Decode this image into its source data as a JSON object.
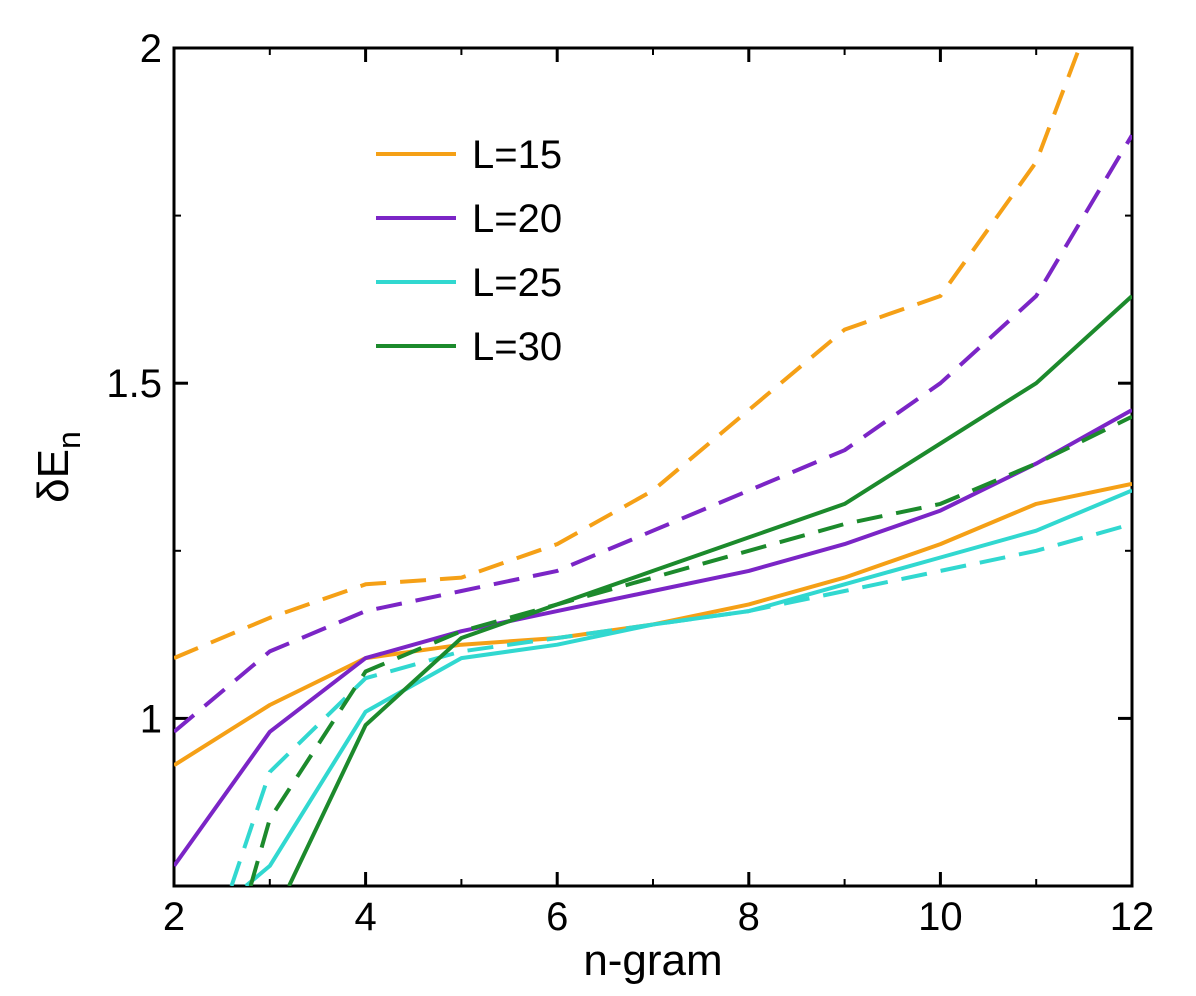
{
  "chart_data": {
    "type": "line",
    "xlabel": "n-gram",
    "ylabel_main": "δE",
    "ylabel_sub": "n",
    "xlim": [
      2,
      12
    ],
    "ylim": [
      0.75,
      2
    ],
    "x_ticks": [
      2,
      4,
      6,
      8,
      10,
      12
    ],
    "x_tick_labels": [
      "2",
      "4",
      "6",
      "8",
      "10",
      "12"
    ],
    "y_ticks": [
      1,
      1.5,
      2
    ],
    "y_tick_labels": [
      "1",
      "1.5",
      "2"
    ],
    "grid": false,
    "legend_position": "top-left",
    "legend": [
      {
        "label": "L=15",
        "color": "#f5a016"
      },
      {
        "label": "L=20",
        "color": "#7b25c6"
      },
      {
        "label": "L=25",
        "color": "#31d8d0"
      },
      {
        "label": "L=30",
        "color": "#1c8a2c"
      }
    ],
    "series": [
      {
        "name": "L=15 solid",
        "color": "#f5a016",
        "style": "solid",
        "x": [
          2,
          3,
          4,
          5,
          6,
          7,
          8,
          9,
          10,
          11,
          12
        ],
        "y": [
          0.93,
          1.02,
          1.09,
          1.11,
          1.12,
          1.14,
          1.17,
          1.21,
          1.26,
          1.32,
          1.35
        ]
      },
      {
        "name": "L=15 dashed",
        "color": "#f5a016",
        "style": "dashed",
        "x": [
          2,
          3,
          4,
          5,
          6,
          7,
          8,
          9,
          10,
          11,
          11.45
        ],
        "y": [
          1.09,
          1.15,
          1.2,
          1.21,
          1.26,
          1.34,
          1.46,
          1.58,
          1.63,
          1.83,
          2.0
        ]
      },
      {
        "name": "L=20 solid",
        "color": "#7b25c6",
        "style": "solid",
        "x": [
          2,
          3,
          4,
          5,
          6,
          7,
          8,
          9,
          10,
          11,
          12
        ],
        "y": [
          0.78,
          0.98,
          1.09,
          1.13,
          1.16,
          1.19,
          1.22,
          1.26,
          1.31,
          1.38,
          1.46
        ]
      },
      {
        "name": "L=20 dashed",
        "color": "#7b25c6",
        "style": "dashed",
        "x": [
          2,
          3,
          4,
          5,
          6,
          7,
          8,
          9,
          10,
          11,
          12
        ],
        "y": [
          0.98,
          1.1,
          1.16,
          1.19,
          1.22,
          1.28,
          1.34,
          1.4,
          1.5,
          1.63,
          1.87
        ]
      },
      {
        "name": "L=25 solid",
        "color": "#31d8d0",
        "style": "solid",
        "x": [
          2.75,
          3,
          4,
          5,
          6,
          7,
          8,
          9,
          10,
          11,
          12
        ],
        "y": [
          0.75,
          0.78,
          1.01,
          1.09,
          1.11,
          1.14,
          1.16,
          1.2,
          1.24,
          1.28,
          1.34
        ]
      },
      {
        "name": "L=25 dashed",
        "color": "#31d8d0",
        "style": "dashed",
        "x": [
          2.6,
          3,
          4,
          5,
          6,
          7,
          8,
          9,
          10,
          11,
          12
        ],
        "y": [
          0.75,
          0.92,
          1.06,
          1.1,
          1.12,
          1.14,
          1.16,
          1.19,
          1.22,
          1.25,
          1.29
        ]
      },
      {
        "name": "L=30 solid",
        "color": "#1c8a2c",
        "style": "solid",
        "x": [
          3.2,
          4,
          5,
          6,
          7,
          8,
          9,
          10,
          11,
          12
        ],
        "y": [
          0.75,
          0.99,
          1.12,
          1.17,
          1.22,
          1.27,
          1.32,
          1.41,
          1.5,
          1.63
        ]
      },
      {
        "name": "L=30 dashed",
        "color": "#1c8a2c",
        "style": "dashed",
        "x": [
          2.8,
          3,
          4,
          5,
          6,
          7,
          8,
          9,
          10,
          11,
          12
        ],
        "y": [
          0.75,
          0.85,
          1.07,
          1.13,
          1.17,
          1.21,
          1.25,
          1.29,
          1.32,
          1.38,
          1.45
        ]
      }
    ]
  }
}
